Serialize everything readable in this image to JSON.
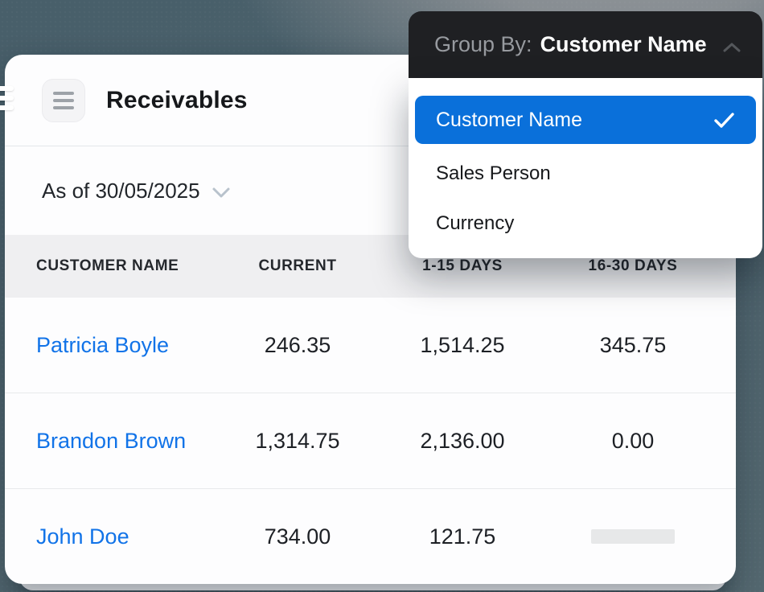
{
  "background": {
    "base_color": "#4c616b",
    "highlight_color": "#8f9499"
  },
  "report_card": {
    "title": "Receivables",
    "date_filter": {
      "label": "As of 30/05/2025"
    },
    "table": {
      "columns": [
        "CUSTOMER NAME",
        "CURRENT",
        "1-15 DAYS",
        "16-30 DAYS"
      ],
      "link_color": "#1173e8",
      "rows": [
        {
          "name": "Patricia Boyle",
          "current": "246.35",
          "days_1_15": "1,514.25",
          "days_16_30": "345.75",
          "days_16_30_loading": false
        },
        {
          "name": "Brandon Brown",
          "current": "1,314.75",
          "days_1_15": "2,136.00",
          "days_16_30": "0.00",
          "days_16_30_loading": false
        },
        {
          "name": "John Doe",
          "current": "734.00",
          "days_1_15": "121.75",
          "days_16_30": "",
          "days_16_30_loading": true
        }
      ]
    }
  },
  "group_by_dropdown": {
    "label": "Group By:",
    "selected_value": "Customer Name",
    "header_bg": "#1f2023",
    "selected_bg": "#0a70da",
    "options": [
      {
        "label": "Customer Name",
        "selected": true
      },
      {
        "label": "Sales Person",
        "selected": false
      },
      {
        "label": "Currency",
        "selected": false
      }
    ]
  }
}
